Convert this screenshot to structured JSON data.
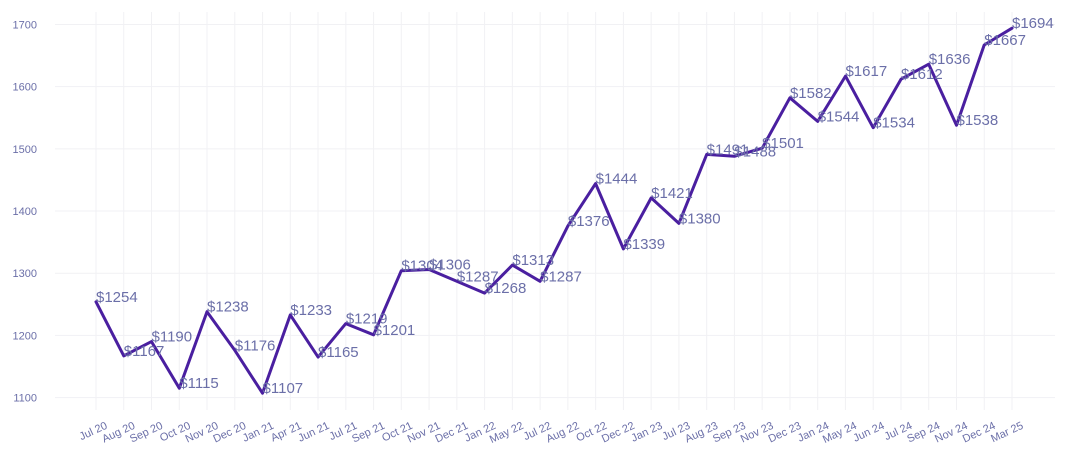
{
  "chart_data": {
    "type": "line",
    "title": "",
    "xlabel": "",
    "ylabel": "",
    "x": [
      "Jul 20",
      "Aug 20",
      "Sep 20",
      "Oct 20",
      "Nov 20",
      "Dec 20",
      "Jan 21",
      "Apr 21",
      "Jun 21",
      "Jul 21",
      "Sep 21",
      "Oct 21",
      "Nov 21",
      "Dec 21",
      "Jan 22",
      "May 22",
      "Jul 22",
      "Aug 22",
      "Oct 22",
      "Dec 22",
      "Jan 23",
      "Jul 23",
      "Aug 23",
      "Sep 23",
      "Nov 23",
      "Dec 23",
      "Jan 24",
      "May 24",
      "Jun 24",
      "Jul 24",
      "Sep 24",
      "Nov 24",
      "Dec 24",
      "Mar 25"
    ],
    "series": [
      {
        "values": [
          1254,
          1167,
          1190,
          1115,
          1238,
          1176,
          1107,
          1233,
          1165,
          1219,
          1201,
          1304,
          1306,
          1287,
          1268,
          1313,
          1287,
          1376,
          1444,
          1339,
          1421,
          1380,
          1491,
          1488,
          1501,
          1582,
          1544,
          1617,
          1534,
          1612,
          1636,
          1538,
          1667,
          1694
        ],
        "labels": [
          "$1254",
          "$1167",
          "$1190",
          "$1115",
          "$1238",
          "$1176",
          "$1107",
          "$1233",
          "$1165",
          "$1219",
          "$1201",
          "$1304",
          "$1306",
          "$1287",
          "$1268",
          "$1313",
          "$1287",
          "$1376",
          "$1444",
          "$1339",
          "$1421",
          "$1380",
          "$1491",
          "$1488",
          "$1501",
          "$1582",
          "$1544",
          "$1617",
          "$1534",
          "$1612",
          "$1636",
          "$1538",
          "$1667",
          "$1694"
        ]
      }
    ],
    "ylim": [
      1080,
      1720
    ],
    "yticks": [
      1100,
      1200,
      1300,
      1400,
      1500,
      1600,
      1700
    ],
    "grid": true,
    "legend": "none",
    "colors": {
      "line": "#4a1fa0",
      "text": "#6b6fa8",
      "grid": "#f1f1f4"
    }
  }
}
